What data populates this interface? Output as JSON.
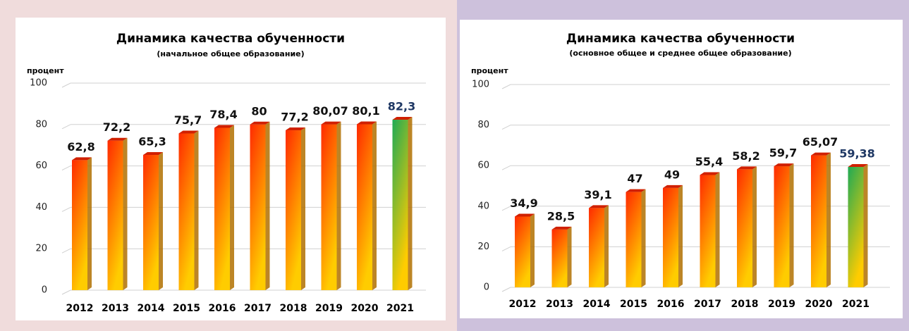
{
  "chart_data": [
    {
      "type": "bar",
      "title": "Динамика качества обученности",
      "subtitle": "(начальное общее образование)",
      "y_label": "процент",
      "categories": [
        "2012",
        "2013",
        "2014",
        "2015",
        "2016",
        "2017",
        "2018",
        "2019",
        "2020",
        "2021"
      ],
      "values": [
        62.8,
        72.2,
        65.3,
        75.7,
        78.4,
        80,
        77.2,
        80.07,
        80.1,
        82.3
      ],
      "value_labels": [
        "62,8",
        "72,2",
        "65,3",
        "75,7",
        "78,4",
        "80",
        "77,2",
        "80,07",
        "80,1",
        "82,3"
      ],
      "colors": [
        "#ff2a00",
        "#ff2a00",
        "#ff2a00",
        "#ff2a00",
        "#ff2a00",
        "#ff2a00",
        "#ff2a00",
        "#ff2a00",
        "#ff2a00",
        "#1faa55"
      ],
      "label_colors": [
        "#111111",
        "#111111",
        "#111111",
        "#111111",
        "#111111",
        "#111111",
        "#111111",
        "#111111",
        "#111111",
        "#1f3864"
      ],
      "ylim": [
        0,
        100
      ],
      "yticks": [
        0,
        20,
        40,
        60,
        80,
        100
      ],
      "grid": true
    },
    {
      "type": "bar",
      "title": "Динамика качества обученности",
      "subtitle": "(основное общее и среднее общее образование)",
      "y_label": "процент",
      "categories": [
        "2012",
        "2013",
        "2014",
        "2015",
        "2016",
        "2017",
        "2018",
        "2019",
        "2020",
        "2021"
      ],
      "values": [
        34.9,
        28.5,
        39.1,
        47,
        49,
        55.4,
        58.2,
        59.7,
        65.07,
        59.38
      ],
      "value_labels": [
        "34,9",
        "28,5",
        "39,1",
        "47",
        "49",
        "55,4",
        "58,2",
        "59,7",
        "65,07",
        "59,38"
      ],
      "colors": [
        "#ff2a00",
        "#ff2a00",
        "#ff2a00",
        "#ff2a00",
        "#ff2a00",
        "#ff2a00",
        "#ff2a00",
        "#ff2a00",
        "#ff2a00",
        "#1faa55"
      ],
      "label_colors": [
        "#111111",
        "#111111",
        "#111111",
        "#111111",
        "#111111",
        "#111111",
        "#111111",
        "#111111",
        "#111111",
        "#1f3864"
      ],
      "ylim": [
        0,
        100
      ],
      "yticks": [
        0,
        20,
        40,
        60,
        80,
        100
      ],
      "grid": true
    }
  ]
}
